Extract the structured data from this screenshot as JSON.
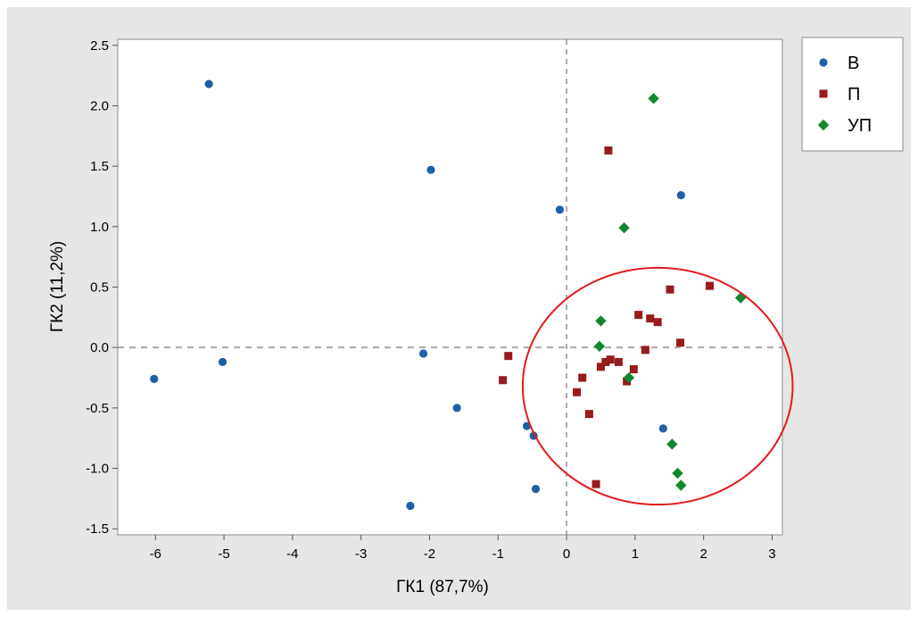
{
  "chart_data": {
    "type": "scatter",
    "title": "",
    "xlabel": "ГК1 (87,7%)",
    "ylabel": "ГК2 (11,2%)",
    "xlim": [
      -6.55,
      3.15
    ],
    "ylim": [
      -1.55,
      2.55
    ],
    "xticks": [
      -6,
      -5,
      -4,
      -3,
      -2,
      -1,
      0,
      1,
      2,
      3
    ],
    "xtick_labels": [
      "-6",
      "-5",
      "-4",
      "-3",
      "-2",
      "-1",
      "0",
      "1",
      "2",
      "3"
    ],
    "yticks": [
      -1.5,
      -1.0,
      -0.5,
      0.0,
      0.5,
      1.0,
      1.5,
      2.0,
      2.5
    ],
    "ytick_labels": [
      "-1.5",
      "-1.0",
      "-0.5",
      "0.0",
      "0.5",
      "1.0",
      "1.5",
      "2.0",
      "2.5"
    ],
    "reference_lines": {
      "x": 0,
      "y": 0,
      "style": "dashed"
    },
    "grid": false,
    "legend_position": "right",
    "annotation": {
      "shape": "ellipse",
      "color": "#e31a1c",
      "center": [
        1.33,
        -0.32
      ],
      "radius_x": 1.97,
      "radius_y": 0.98
    },
    "series": [
      {
        "name": "В",
        "marker": "circle",
        "color": "#1f5fa6",
        "x": [
          -5.22,
          -1.98,
          -0.1,
          1.67,
          -6.02,
          -5.02,
          -2.09,
          -1.6,
          -0.58,
          -0.48,
          -0.45,
          -2.28,
          1.41
        ],
        "y": [
          2.18,
          1.47,
          1.14,
          1.26,
          -0.26,
          -0.12,
          -0.05,
          -0.5,
          -0.65,
          -0.73,
          -1.17,
          -1.31,
          -0.67
        ]
      },
      {
        "name": "П",
        "marker": "square",
        "color": "#981b1e",
        "x": [
          0.61,
          1.51,
          2.09,
          1.05,
          1.22,
          1.33,
          1.66,
          1.15,
          -0.85,
          -0.93,
          0.23,
          0.15,
          0.5,
          0.57,
          0.64,
          0.76,
          0.98,
          0.88,
          0.33,
          0.43
        ],
        "y": [
          1.63,
          0.48,
          0.51,
          0.27,
          0.24,
          0.21,
          0.04,
          -0.02,
          -0.07,
          -0.27,
          -0.25,
          -0.37,
          -0.16,
          -0.12,
          -0.1,
          -0.12,
          -0.18,
          -0.28,
          -0.55,
          -1.13
        ]
      },
      {
        "name": "УП",
        "marker": "diamond",
        "color": "#10882f",
        "x": [
          1.27,
          0.84,
          2.54,
          0.5,
          0.48,
          0.91,
          1.54,
          1.62,
          1.67
        ],
        "y": [
          2.06,
          0.99,
          0.41,
          0.22,
          0.01,
          -0.25,
          -0.8,
          -1.04,
          -1.14
        ]
      }
    ]
  }
}
